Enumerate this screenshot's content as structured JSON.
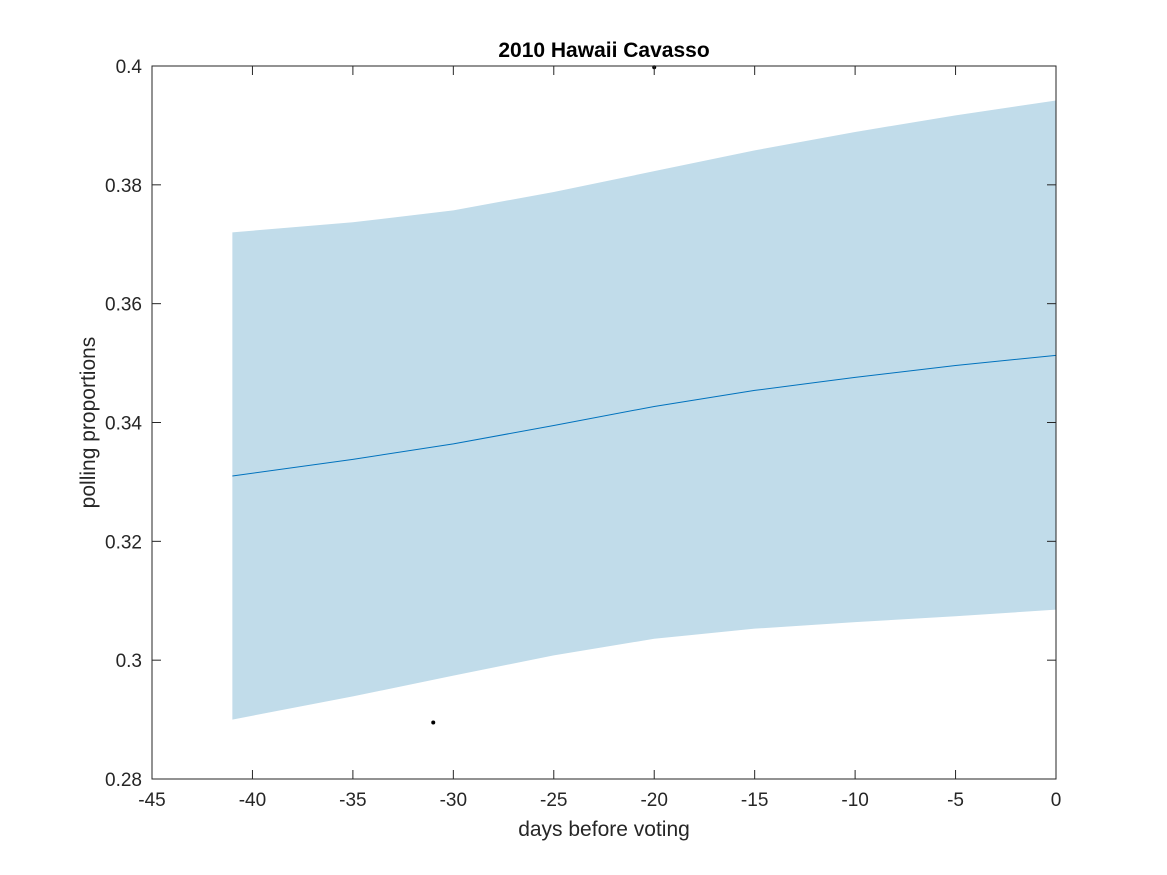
{
  "chart_data": {
    "type": "line",
    "title": "2010 Hawaii Cavasso",
    "xlabel": "days before voting",
    "ylabel": "polling proportions",
    "xlim": [
      -45,
      0
    ],
    "ylim": [
      0.28,
      0.4
    ],
    "xticks": [
      -45,
      -40,
      -35,
      -30,
      -25,
      -20,
      -15,
      -10,
      -5,
      0
    ],
    "xtick_labels": [
      "-45",
      "-40",
      "-35",
      "-30",
      "-25",
      "-20",
      "-15",
      "-10",
      "-5",
      "0"
    ],
    "yticks": [
      0.28,
      0.3,
      0.32,
      0.34,
      0.36,
      0.38,
      0.4
    ],
    "ytick_labels": [
      "0.28",
      "0.3",
      "0.32",
      "0.34",
      "0.36",
      "0.38",
      "0.4"
    ],
    "grid": false,
    "band": {
      "x": [
        -41,
        -35,
        -30,
        -25,
        -20,
        -15,
        -10,
        -5,
        0
      ],
      "upper": [
        0.372,
        0.3737,
        0.3757,
        0.3788,
        0.3823,
        0.3858,
        0.3889,
        0.3917,
        0.3942
      ],
      "lower": [
        0.29,
        0.2939,
        0.2974,
        0.3008,
        0.3036,
        0.3053,
        0.3064,
        0.3074,
        0.3085
      ],
      "color": "#c1dcea"
    },
    "series": [
      {
        "x": [
          -41,
          -35,
          -30,
          -25,
          -20,
          -15,
          -10,
          -5,
          0
        ],
        "y": [
          0.331,
          0.3338,
          0.3364,
          0.3395,
          0.3427,
          0.3454,
          0.3476,
          0.3496,
          0.3513
        ],
        "color": "#0072bd"
      }
    ],
    "points": {
      "x": [
        -31,
        -20
      ],
      "y": [
        0.2895,
        0.3998
      ],
      "color": "#000000"
    },
    "axis_color": "#262626"
  }
}
